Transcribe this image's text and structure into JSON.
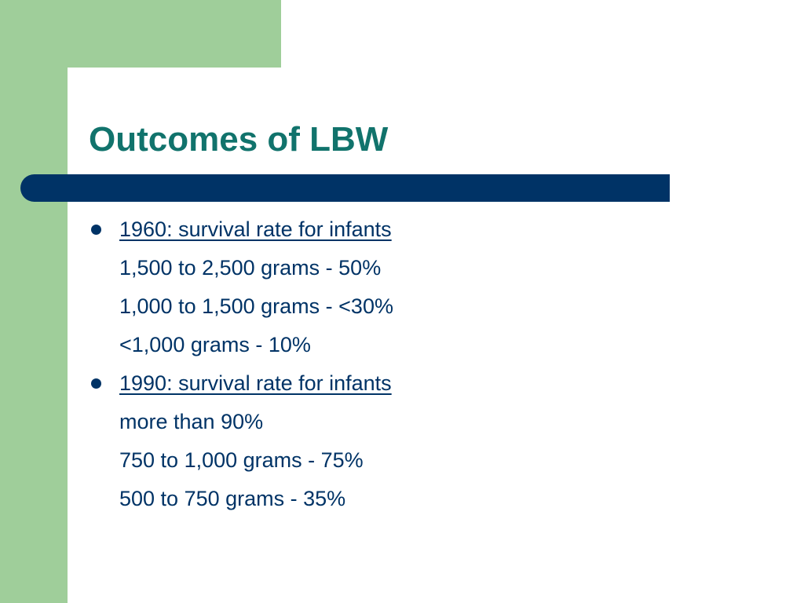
{
  "slide": {
    "title": "Outcomes of LBW",
    "bullets": [
      {
        "heading": "1960: survival rate for infants",
        "lines": [
          "1,500 to 2,500 grams - 50%",
          "1,000 to 1,500 grams - <30%",
          "<1,000 grams - 10%"
        ]
      },
      {
        "heading": "1990: survival rate for infants",
        "lines": [
          "more than 90%",
          "750 to 1,000 grams - 75%",
          "500 to 750 grams - 35%"
        ]
      }
    ]
  },
  "colors": {
    "title": "#11736c",
    "body_text": "#003366",
    "accent_bar": "#003366",
    "side_band": "#9fce9a",
    "background": "#ffffff"
  }
}
